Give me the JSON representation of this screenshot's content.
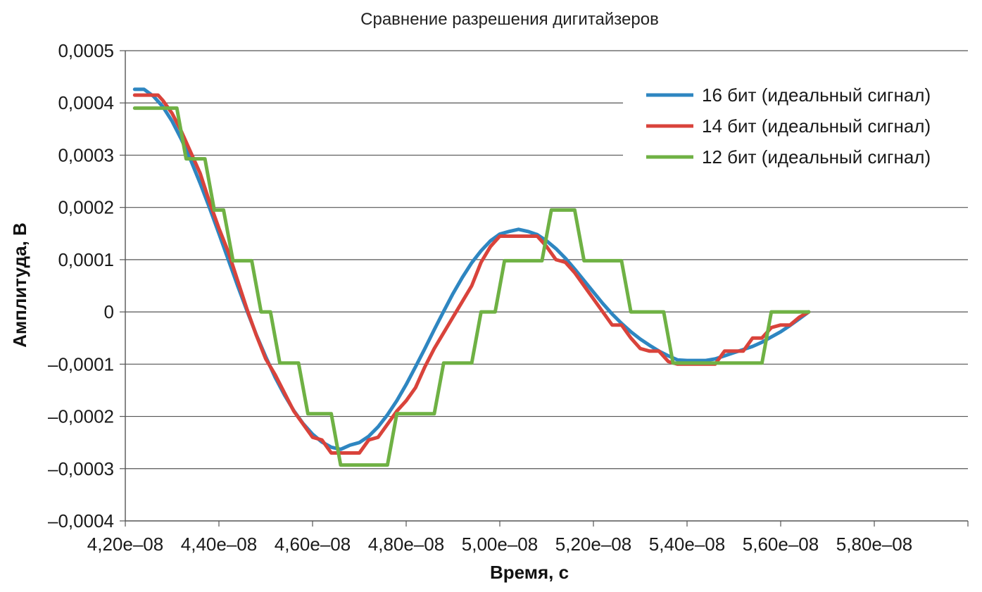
{
  "chart_data": {
    "type": "line",
    "title": "Сравнение разрешения дигитайзеров",
    "xlabel": "Время, с",
    "ylabel": "Амплитуда, В",
    "xlim": [
      4.2e-08,
      6e-08
    ],
    "ylim": [
      -0.0004,
      0.0005
    ],
    "x_ticks": [
      4.2e-08,
      4.4e-08,
      4.6e-08,
      4.8e-08,
      5e-08,
      5.2e-08,
      5.4e-08,
      5.6e-08,
      5.8e-08,
      6e-08
    ],
    "x_tick_labels": [
      "4,20e–08",
      "4,40e–08",
      "4,60e–08",
      "4,80e–08",
      "5,00e–08",
      "5,20e–08",
      "5,40e–08",
      "5,60e–08",
      "5,80e–08",
      ""
    ],
    "y_ticks": [
      -0.0004,
      -0.0003,
      -0.0002,
      -0.0001,
      0,
      0.0001,
      0.0002,
      0.0003,
      0.0004,
      0.0005
    ],
    "y_tick_labels": [
      "–0,0004",
      "–0,0003",
      "–0,0002",
      "–0,0001",
      "0",
      "0,0001",
      "0,0002",
      "0,0003",
      "0,0004",
      "0,0005"
    ],
    "grid": true,
    "legend_position": "top-right",
    "series": [
      {
        "name": "16 бит (идеальный сигнал)",
        "color": "#2e86c1",
        "points": [
          [
            4.22e-08,
            0.000426
          ],
          [
            4.24e-08,
            0.000426
          ],
          [
            4.26e-08,
            0.000413
          ],
          [
            4.28e-08,
            0.000393
          ],
          [
            4.3e-08,
            0.000365
          ],
          [
            4.32e-08,
            0.00033
          ],
          [
            4.34e-08,
            0.00029
          ],
          [
            4.36e-08,
            0.000246
          ],
          [
            4.38e-08,
            0.000199
          ],
          [
            4.4e-08,
            0.00015
          ],
          [
            4.42e-08,
            0.0001
          ],
          [
            4.44e-08,
            5e-05
          ],
          [
            4.46e-08,
            2e-06
          ],
          [
            4.48e-08,
            -4.4e-05
          ],
          [
            4.5e-08,
            -8.6e-05
          ],
          [
            4.52e-08,
            -0.000125
          ],
          [
            4.54e-08,
            -0.000159
          ],
          [
            4.56e-08,
            -0.000189
          ],
          [
            4.58e-08,
            -0.000214
          ],
          [
            4.6e-08,
            -0.000234
          ],
          [
            4.62e-08,
            -0.000249
          ],
          [
            4.64e-08,
            -0.000259
          ],
          [
            4.66e-08,
            -0.000263
          ],
          [
            4.68e-08,
            -0.000255
          ],
          [
            4.7e-08,
            -0.00025
          ],
          [
            4.72e-08,
            -0.000238
          ],
          [
            4.74e-08,
            -0.00022
          ],
          [
            4.76e-08,
            -0.000197
          ],
          [
            4.78e-08,
            -0.00017
          ],
          [
            4.8e-08,
            -0.000139
          ],
          [
            4.82e-08,
            -0.000105
          ],
          [
            4.84e-08,
            -7e-05
          ],
          [
            4.86e-08,
            -3.4e-05
          ],
          [
            4.88e-08,
            1e-06
          ],
          [
            4.9e-08,
            3.5e-05
          ],
          [
            4.92e-08,
            6.6e-05
          ],
          [
            4.94e-08,
            9.4e-05
          ],
          [
            4.96e-08,
            0.000117
          ],
          [
            4.98e-08,
            0.000136
          ],
          [
            5e-08,
            0.000149
          ],
          [
            5.02e-08,
            0.000154
          ],
          [
            5.04e-08,
            0.000158
          ],
          [
            5.06e-08,
            0.000154
          ],
          [
            5.08e-08,
            0.000148
          ],
          [
            5.1e-08,
            0.000136
          ],
          [
            5.12e-08,
            0.000121
          ],
          [
            5.14e-08,
            0.000103
          ],
          [
            5.16e-08,
            8.2e-05
          ],
          [
            5.18e-08,
            6e-05
          ],
          [
            5.2e-08,
            3.8e-05
          ],
          [
            5.22e-08,
            1.6e-05
          ],
          [
            5.24e-08,
            -4e-06
          ],
          [
            5.26e-08,
            -2.2e-05
          ],
          [
            5.28e-08,
            -3.8e-05
          ],
          [
            5.3e-08,
            -5.2e-05
          ],
          [
            5.32e-08,
            -6.4e-05
          ],
          [
            5.34e-08,
            -7.5e-05
          ],
          [
            5.36e-08,
            -8.4e-05
          ],
          [
            5.38e-08,
            -9.2e-05
          ],
          [
            5.4e-08,
            -9.3e-05
          ],
          [
            5.42e-08,
            -9.3e-05
          ],
          [
            5.44e-08,
            -9.3e-05
          ],
          [
            5.46e-08,
            -9e-05
          ],
          [
            5.48e-08,
            -8.4e-05
          ],
          [
            5.5e-08,
            -7.8e-05
          ],
          [
            5.52e-08,
            -7.2e-05
          ],
          [
            5.54e-08,
            -6.6e-05
          ],
          [
            5.56e-08,
            -5.8e-05
          ],
          [
            5.58e-08,
            -4.8e-05
          ],
          [
            5.6e-08,
            -3.8e-05
          ],
          [
            5.62e-08,
            -2.6e-05
          ],
          [
            5.64e-08,
            -1.3e-05
          ],
          [
            5.66e-08,
            0.0
          ]
        ]
      },
      {
        "name": "14 бит (идеальный сигнал)",
        "color": "#d9433b",
        "points": [
          [
            4.22e-08,
            0.000415
          ],
          [
            4.24e-08,
            0.000415
          ],
          [
            4.26e-08,
            0.000415
          ],
          [
            4.27e-08,
            0.000415
          ],
          [
            4.28e-08,
            0.000405
          ],
          [
            4.3e-08,
            0.00038
          ],
          [
            4.32e-08,
            0.000345
          ],
          [
            4.34e-08,
            0.000305
          ],
          [
            4.36e-08,
            0.000265
          ],
          [
            4.38e-08,
            0.00021
          ],
          [
            4.4e-08,
            0.00016
          ],
          [
            4.42e-08,
            0.000115
          ],
          [
            4.44e-08,
            6e-05
          ],
          [
            4.46e-08,
            5e-06
          ],
          [
            4.48e-08,
            -4.5e-05
          ],
          [
            4.5e-08,
            -9e-05
          ],
          [
            4.52e-08,
            -0.00012
          ],
          [
            4.54e-08,
            -0.000155
          ],
          [
            4.56e-08,
            -0.00019
          ],
          [
            4.58e-08,
            -0.000215
          ],
          [
            4.6e-08,
            -0.00024
          ],
          [
            4.62e-08,
            -0.000245
          ],
          [
            4.64e-08,
            -0.00027
          ],
          [
            4.66e-08,
            -0.00027
          ],
          [
            4.68e-08,
            -0.00027
          ],
          [
            4.7e-08,
            -0.00027
          ],
          [
            4.72e-08,
            -0.000245
          ],
          [
            4.74e-08,
            -0.00024
          ],
          [
            4.76e-08,
            -0.000215
          ],
          [
            4.78e-08,
            -0.00019
          ],
          [
            4.8e-08,
            -0.00017
          ],
          [
            4.82e-08,
            -0.000145
          ],
          [
            4.84e-08,
            -0.000105
          ],
          [
            4.86e-08,
            -7e-05
          ],
          [
            4.88e-08,
            -4e-05
          ],
          [
            4.9e-08,
            -1e-05
          ],
          [
            4.92e-08,
            2e-05
          ],
          [
            4.94e-08,
            5e-05
          ],
          [
            4.96e-08,
            9.5e-05
          ],
          [
            4.98e-08,
            0.000125
          ],
          [
            5e-08,
            0.000145
          ],
          [
            5.02e-08,
            0.000145
          ],
          [
            5.04e-08,
            0.000145
          ],
          [
            5.06e-08,
            0.000145
          ],
          [
            5.08e-08,
            0.000145
          ],
          [
            5.1e-08,
            0.000125
          ],
          [
            5.12e-08,
            0.0001
          ],
          [
            5.14e-08,
            9.5e-05
          ],
          [
            5.16e-08,
            7.5e-05
          ],
          [
            5.18e-08,
            5e-05
          ],
          [
            5.2e-08,
            2.5e-05
          ],
          [
            5.22e-08,
            0.0
          ],
          [
            5.24e-08,
            -2.5e-05
          ],
          [
            5.26e-08,
            -2.5e-05
          ],
          [
            5.28e-08,
            -5e-05
          ],
          [
            5.3e-08,
            -7e-05
          ],
          [
            5.32e-08,
            -7.5e-05
          ],
          [
            5.34e-08,
            -7.5e-05
          ],
          [
            5.36e-08,
            -9.5e-05
          ],
          [
            5.38e-08,
            -0.0001
          ],
          [
            5.4e-08,
            -0.0001
          ],
          [
            5.42e-08,
            -0.0001
          ],
          [
            5.44e-08,
            -0.0001
          ],
          [
            5.46e-08,
            -0.0001
          ],
          [
            5.48e-08,
            -7.5e-05
          ],
          [
            5.5e-08,
            -7.5e-05
          ],
          [
            5.52e-08,
            -7.5e-05
          ],
          [
            5.54e-08,
            -5e-05
          ],
          [
            5.56e-08,
            -5e-05
          ],
          [
            5.58e-08,
            -3e-05
          ],
          [
            5.6e-08,
            -2.5e-05
          ],
          [
            5.62e-08,
            -2.5e-05
          ],
          [
            5.64e-08,
            -1e-05
          ],
          [
            5.66e-08,
            0.0
          ]
        ]
      },
      {
        "name": "12 бит (идеальный сигнал)",
        "color": "#6fb144",
        "points": [
          [
            4.22e-08,
            0.00039
          ],
          [
            4.31e-08,
            0.00039
          ],
          [
            4.33e-08,
            0.000293
          ],
          [
            4.37e-08,
            0.000293
          ],
          [
            4.39e-08,
            0.000195
          ],
          [
            4.41e-08,
            0.000195
          ],
          [
            4.43e-08,
            9.8e-05
          ],
          [
            4.47e-08,
            9.8e-05
          ],
          [
            4.49e-08,
            0.0
          ],
          [
            4.51e-08,
            0.0
          ],
          [
            4.53e-08,
            -9.8e-05
          ],
          [
            4.57e-08,
            -9.8e-05
          ],
          [
            4.59e-08,
            -0.000195
          ],
          [
            4.64e-08,
            -0.000195
          ],
          [
            4.66e-08,
            -0.000293
          ],
          [
            4.76e-08,
            -0.000293
          ],
          [
            4.78e-08,
            -0.000195
          ],
          [
            4.86e-08,
            -0.000195
          ],
          [
            4.88e-08,
            -9.8e-05
          ],
          [
            4.94e-08,
            -9.8e-05
          ],
          [
            4.96e-08,
            0.0
          ],
          [
            4.99e-08,
            0.0
          ],
          [
            5.01e-08,
            9.8e-05
          ],
          [
            5.09e-08,
            9.8e-05
          ],
          [
            5.11e-08,
            0.000195
          ],
          [
            5.16e-08,
            0.000195
          ],
          [
            5.18e-08,
            9.8e-05
          ],
          [
            5.26e-08,
            9.8e-05
          ],
          [
            5.28e-08,
            0.0
          ],
          [
            5.35e-08,
            0.0
          ],
          [
            5.37e-08,
            -9.8e-05
          ],
          [
            5.56e-08,
            -9.8e-05
          ],
          [
            5.58e-08,
            0.0
          ],
          [
            5.66e-08,
            0.0
          ]
        ]
      }
    ]
  }
}
